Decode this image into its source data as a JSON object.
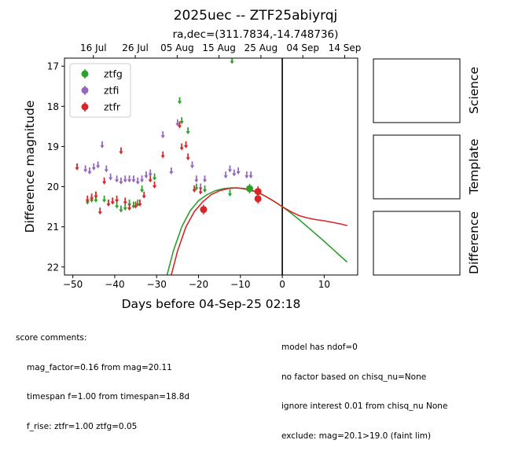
{
  "title": "2025uec -- ZTF25abiyrqj",
  "subtitle": "ra,dec=(311.7834,-14.748736)",
  "score_comments": {
    "header": "score comments:",
    "lines": [
      "mag_factor=0.16 from mag=20.11",
      "timespan f=1.00 from timespan=18.8d",
      "f_rise: ztfr=1.00 ztfg=0.05"
    ]
  },
  "model_comments": [
    "model has ndof=0",
    "no factor based on chisq_nu=None",
    "ignore interest 0.01 from chisq_nu None",
    "exclude: mag=20.1>19.0 (faint lim)"
  ],
  "side_panels": [
    "Science",
    "Template",
    "Difference"
  ],
  "chart_data": {
    "type": "scatter",
    "xlabel": "Days before 04-Sep-25 02:18",
    "ylabel": "Difference magnitude",
    "xlim": [
      -52,
      18
    ],
    "ylim": [
      22.2,
      16.8
    ],
    "y_inverted": true,
    "x_ticks": [
      -50,
      -40,
      -30,
      -20,
      -10,
      0,
      10
    ],
    "y_ticks": [
      17,
      18,
      19,
      20,
      21,
      22
    ],
    "top_axis": {
      "ticks": [
        {
          "x": -45.1,
          "label": "16 Jul"
        },
        {
          "x": -35.1,
          "label": "26 Jul"
        },
        {
          "x": -25.1,
          "label": "05 Aug"
        },
        {
          "x": -15.1,
          "label": "15 Aug"
        },
        {
          "x": -5.1,
          "label": "25 Aug"
        },
        {
          "x": 4.9,
          "label": "04 Sep"
        },
        {
          "x": 14.9,
          "label": "14 Sep"
        }
      ]
    },
    "vline_x": 0,
    "legend": {
      "position": "top-left",
      "entries": [
        "ztfg",
        "ztfi",
        "ztfr"
      ]
    },
    "series": [
      {
        "name": "ztfg",
        "color": "#2ca02c",
        "upper_limits": [
          [
            -46.5,
            20.35
          ],
          [
            -45.5,
            20.3
          ],
          [
            -44.5,
            20.3
          ],
          [
            -42.5,
            20.3
          ],
          [
            -40.5,
            20.35
          ],
          [
            -39.5,
            20.45
          ],
          [
            -38.5,
            20.55
          ],
          [
            -37.5,
            20.5
          ],
          [
            -36.5,
            20.4
          ],
          [
            -35.5,
            20.45
          ],
          [
            -34.5,
            20.4
          ],
          [
            -33.5,
            20.05
          ],
          [
            -30.5,
            19.75
          ],
          [
            -24.5,
            17.85
          ],
          [
            -24.0,
            18.35
          ],
          [
            -22.5,
            18.6
          ],
          [
            -20.5,
            20.0
          ],
          [
            -18.5,
            20.05
          ],
          [
            -12.5,
            20.15
          ],
          [
            -12.0,
            16.85
          ]
        ],
        "detections": [
          {
            "x": -7.8,
            "y": 20.05,
            "err": 0.12
          }
        ],
        "model": [
          [
            -27.5,
            22.2
          ],
          [
            -26.0,
            21.6
          ],
          [
            -24.0,
            21.0
          ],
          [
            -22.0,
            20.6
          ],
          [
            -20.0,
            20.35
          ],
          [
            -18.0,
            20.2
          ],
          [
            -16.0,
            20.1
          ],
          [
            -14.0,
            20.05
          ],
          [
            -12.0,
            20.03
          ],
          [
            -10.0,
            20.04
          ],
          [
            -8.0,
            20.08
          ],
          [
            -6.0,
            20.14
          ],
          [
            -4.0,
            20.24
          ],
          [
            -2.0,
            20.36
          ],
          [
            0.0,
            20.5
          ],
          [
            2.0,
            20.65
          ],
          [
            4.0,
            20.82
          ],
          [
            6.0,
            21.0
          ],
          [
            8.0,
            21.18
          ],
          [
            10.0,
            21.36
          ],
          [
            12.0,
            21.55
          ],
          [
            14.0,
            21.74
          ],
          [
            15.5,
            21.88
          ]
        ]
      },
      {
        "name": "ztfi",
        "color": "#9467bd",
        "upper_limits": [
          [
            -47.0,
            19.55
          ],
          [
            -46.0,
            19.6
          ],
          [
            -45.0,
            19.5
          ],
          [
            -44.0,
            19.45
          ],
          [
            -43.0,
            18.95
          ],
          [
            -42.0,
            19.55
          ],
          [
            -41.0,
            19.75
          ],
          [
            -39.5,
            19.8
          ],
          [
            -38.5,
            19.85
          ],
          [
            -37.5,
            19.8
          ],
          [
            -36.5,
            19.8
          ],
          [
            -35.5,
            19.8
          ],
          [
            -34.5,
            19.85
          ],
          [
            -33.5,
            19.8
          ],
          [
            -32.5,
            19.7
          ],
          [
            -31.5,
            19.65
          ],
          [
            -28.5,
            18.7
          ],
          [
            -26.5,
            19.6
          ],
          [
            -25.0,
            18.4
          ],
          [
            -21.5,
            19.45
          ],
          [
            -20.5,
            19.8
          ],
          [
            -19.5,
            20.0
          ],
          [
            -18.5,
            19.8
          ],
          [
            -13.5,
            19.7
          ],
          [
            -12.5,
            19.55
          ],
          [
            -11.5,
            19.65
          ],
          [
            -10.5,
            19.6
          ],
          [
            -8.5,
            19.7
          ],
          [
            -7.5,
            19.7
          ]
        ],
        "detections": []
      },
      {
        "name": "ztfr",
        "color": "#d62728",
        "upper_limits": [
          [
            -49.0,
            19.5
          ],
          [
            -46.5,
            20.3
          ],
          [
            -45.5,
            20.25
          ],
          [
            -44.5,
            20.2
          ],
          [
            -43.5,
            20.6
          ],
          [
            -42.5,
            19.85
          ],
          [
            -41.5,
            20.4
          ],
          [
            -40.5,
            20.35
          ],
          [
            -39.5,
            20.3
          ],
          [
            -38.5,
            19.1
          ],
          [
            -37.5,
            20.35
          ],
          [
            -36.5,
            20.5
          ],
          [
            -35.0,
            20.45
          ],
          [
            -34.0,
            20.4
          ],
          [
            -33.0,
            20.2
          ],
          [
            -31.5,
            19.8
          ],
          [
            -30.5,
            19.95
          ],
          [
            -28.5,
            19.2
          ],
          [
            -24.5,
            18.45
          ],
          [
            -24.0,
            19.0
          ],
          [
            -23.0,
            18.95
          ],
          [
            -22.5,
            19.25
          ],
          [
            -21.0,
            20.05
          ],
          [
            -19.5,
            20.1
          ]
        ],
        "detections": [
          {
            "x": -18.8,
            "y": 20.57,
            "err": 0.12
          },
          {
            "x": -5.8,
            "y": 20.12,
            "err": 0.13
          },
          {
            "x": -5.8,
            "y": 20.3,
            "err": 0.12
          }
        ],
        "model": [
          [
            -26.5,
            22.2
          ],
          [
            -25.0,
            21.6
          ],
          [
            -23.0,
            21.0
          ],
          [
            -21.0,
            20.62
          ],
          [
            -19.0,
            20.38
          ],
          [
            -17.0,
            20.2
          ],
          [
            -15.0,
            20.1
          ],
          [
            -13.0,
            20.05
          ],
          [
            -11.0,
            20.03
          ],
          [
            -9.0,
            20.05
          ],
          [
            -7.0,
            20.1
          ],
          [
            -5.0,
            20.18
          ],
          [
            -3.0,
            20.3
          ],
          [
            -1.0,
            20.43
          ],
          [
            0.0,
            20.5
          ],
          [
            2.0,
            20.62
          ],
          [
            4.0,
            20.72
          ],
          [
            6.0,
            20.78
          ],
          [
            8.0,
            20.82
          ],
          [
            10.0,
            20.85
          ],
          [
            12.0,
            20.89
          ],
          [
            14.0,
            20.93
          ],
          [
            15.5,
            20.97
          ]
        ]
      }
    ]
  }
}
